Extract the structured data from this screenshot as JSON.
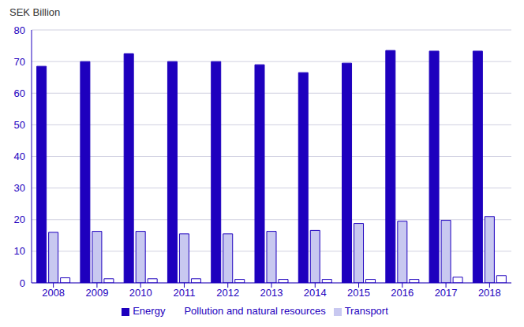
{
  "chart_data": {
    "type": "bar",
    "ylabel": "SEK Billion",
    "categories": [
      "2008",
      "2009",
      "2010",
      "2011",
      "2012",
      "2013",
      "2014",
      "2015",
      "2016",
      "2017",
      "2018"
    ],
    "series": [
      {
        "name": "Energy",
        "color": "#1e00be",
        "values": [
          68.5,
          70,
          72.5,
          70,
          70,
          69,
          66.5,
          69.5,
          73.5,
          73.3,
          73.3
        ]
      },
      {
        "name": "Transport",
        "color": "#c8c8f0",
        "values": [
          16,
          16.3,
          16.3,
          15.5,
          15.5,
          16.3,
          16.6,
          18.8,
          19.5,
          19.8,
          21
        ]
      },
      {
        "name": "Pollution and natural resources",
        "color": "#ffffff",
        "values": [
          1.6,
          1.3,
          1.3,
          1.3,
          1.1,
          1.1,
          1.1,
          1.1,
          1.1,
          1.8,
          2.3
        ]
      }
    ],
    "ylim": [
      0,
      80
    ],
    "yticks": [
      0,
      10,
      20,
      30,
      40,
      50,
      60,
      70,
      80
    ],
    "grid": true,
    "legend": "bottom"
  }
}
